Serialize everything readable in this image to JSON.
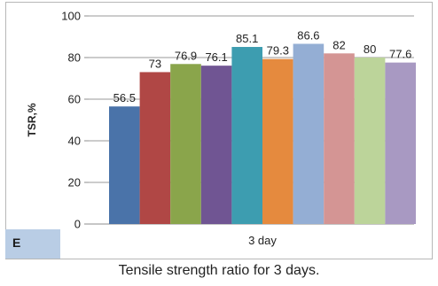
{
  "panel_label": "E",
  "caption": "Tensile strength ratio for 3 days.",
  "chart_data": {
    "type": "bar",
    "title": "",
    "xlabel": "",
    "ylabel": "TSR,%",
    "categories": [
      "3 day"
    ],
    "ylim": [
      0,
      100
    ],
    "yticks": [
      0,
      20,
      40,
      60,
      80,
      100
    ],
    "grid": true,
    "legend": "none",
    "series": [
      {
        "values": [
          56.5
        ],
        "color": "#4a73a9"
      },
      {
        "values": [
          73
        ],
        "color": "#b04745"
      },
      {
        "values": [
          76.9
        ],
        "color": "#8aa54b"
      },
      {
        "values": [
          76.1
        ],
        "color": "#705593"
      },
      {
        "values": [
          85.1
        ],
        "color": "#3d9db0"
      },
      {
        "values": [
          79.3
        ],
        "color": "#e58a3e"
      },
      {
        "values": [
          86.6
        ],
        "color": "#94aed4"
      },
      {
        "values": [
          82
        ],
        "color": "#d49594"
      },
      {
        "values": [
          80
        ],
        "color": "#bcd49a"
      },
      {
        "values": [
          77.6
        ],
        "color": "#a899c2"
      }
    ]
  }
}
